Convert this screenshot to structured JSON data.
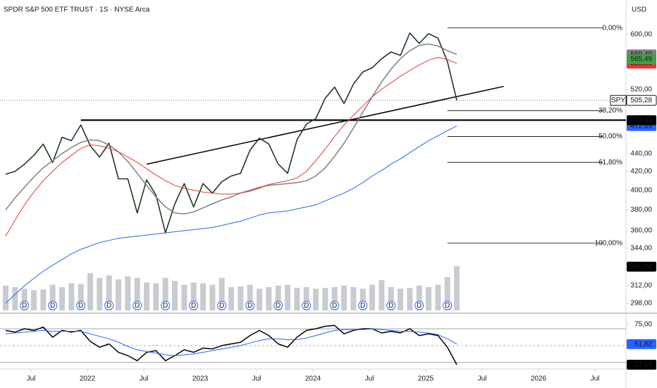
{
  "chart_data": [
    {
      "type": "line",
      "title": "SPDR S&P 500 ETF TRUST · 1S · NYSE Arca",
      "currency": "USD",
      "symbol": "SPY",
      "log_scale": true,
      "grid": false,
      "xlim": [
        "2021-04",
        "2026-10"
      ],
      "xticks": [
        {
          "value": "2021-07",
          "label": "Jul"
        },
        {
          "value": "2022-01",
          "label": "2022"
        },
        {
          "value": "2022-07",
          "label": "Jul"
        },
        {
          "value": "2023-01",
          "label": "2023"
        },
        {
          "value": "2023-07",
          "label": "Jul"
        },
        {
          "value": "2024-01",
          "label": "2024"
        },
        {
          "value": "2024-07",
          "label": "Jul"
        },
        {
          "value": "2025-01",
          "label": "2025"
        },
        {
          "value": "2025-07",
          "label": "Jul"
        },
        {
          "value": "2026-01",
          "label": "2026"
        },
        {
          "value": "2026-07",
          "label": "Jul"
        }
      ],
      "ylim": [
        291,
        656
      ],
      "yticks": [
        {
          "value": 600,
          "label": "600,00"
        },
        {
          "value": 520,
          "label": "520,00"
        },
        {
          "value": 440,
          "label": "440,00"
        },
        {
          "value": 420,
          "label": "420,00"
        },
        {
          "value": 400,
          "label": "400,00"
        },
        {
          "value": 380,
          "label": "380,00"
        },
        {
          "value": 360,
          "label": "360,00"
        },
        {
          "value": 344,
          "label": "344,00"
        },
        {
          "value": 312,
          "label": "312,00"
        },
        {
          "value": 298,
          "label": "298,00"
        }
      ],
      "x": [
        "2021-04",
        "2021-05",
        "2021-06",
        "2021-07",
        "2021-08",
        "2021-09",
        "2021-10",
        "2021-11",
        "2021-12",
        "2022-01",
        "2022-02",
        "2022-03",
        "2022-04",
        "2022-05",
        "2022-06",
        "2022-07",
        "2022-08",
        "2022-09",
        "2022-10",
        "2022-11",
        "2022-12",
        "2023-01",
        "2023-02",
        "2023-03",
        "2023-04",
        "2023-05",
        "2023-06",
        "2023-07",
        "2023-08",
        "2023-09",
        "2023-10",
        "2023-11",
        "2023-12",
        "2024-01",
        "2024-02",
        "2024-03",
        "2024-04",
        "2024-05",
        "2024-06",
        "2024-07",
        "2024-08",
        "2024-09",
        "2024-10",
        "2024-11",
        "2024-12",
        "2025-01",
        "2025-02",
        "2025-03",
        "2025-04"
      ],
      "series": [
        {
          "color": "#1e3a1e",
          "width": 1.6,
          "last_label": {
            "value": 505.28,
            "label": "505,28"
          },
          "values": [
            417,
            420,
            428,
            438,
            451,
            430,
            459,
            455,
            474,
            449,
            436,
            452,
            412,
            412,
            377,
            411,
            395,
            358,
            386,
            407,
            383,
            407,
            397,
            409,
            415,
            418,
            444,
            458,
            451,
            428,
            418,
            456,
            475,
            482,
            508,
            523,
            501,
            527,
            544,
            550,
            563,
            573,
            568,
            602,
            586,
            601,
            594,
            559,
            505.28
          ]
        },
        {
          "color": "#808080",
          "width": 1.5,
          "last_label": {
            "value": 569.4,
            "label": "569,40"
          },
          "values": [
            380,
            392,
            403,
            414,
            424,
            432,
            440,
            447,
            453,
            456,
            455,
            450,
            442,
            431,
            418,
            405,
            393,
            383,
            377,
            376,
            378,
            382,
            386,
            390,
            393,
            397,
            400,
            403,
            405,
            406,
            407,
            408,
            410,
            415,
            424,
            437,
            452,
            470,
            490,
            510,
            530,
            548,
            563,
            575,
            583,
            585,
            582,
            575,
            569.4
          ]
        },
        {
          "color": "#e53935",
          "width": 1,
          "last_label": {
            "value": 556.06,
            "label": "556,06"
          },
          "values": [
            355,
            370,
            385,
            398,
            410,
            420,
            430,
            438,
            446,
            450,
            449,
            446,
            442,
            436,
            430,
            423,
            416,
            410,
            405,
            402,
            400,
            398,
            397,
            396,
            396,
            397,
            399,
            402,
            406,
            408,
            410,
            413,
            420,
            432,
            445,
            460,
            474,
            486,
            498,
            510,
            520,
            529,
            538,
            546,
            554,
            561,
            565,
            562,
            556.06
          ]
        },
        {
          "color": "#2962ff",
          "width": 1,
          "last_label": {
            "value": 472.69,
            "label": "472,69"
          },
          "values": [
            298,
            305,
            312,
            318,
            324,
            329,
            334,
            339,
            343,
            346,
            349,
            351,
            353,
            354,
            355,
            356,
            357,
            358,
            359,
            360,
            361,
            362,
            363,
            365,
            367,
            369,
            372,
            375,
            377,
            378,
            379,
            381,
            383,
            385,
            389,
            393,
            397,
            402,
            408,
            415,
            421,
            428,
            434,
            441,
            448,
            455,
            461,
            467,
            472.69
          ]
        }
      ],
      "extra_labels": [
        {
          "value": 565.49,
          "label": "565,49",
          "color": "#43a047"
        }
      ],
      "volume": {
        "color": "#b2b5be",
        "last_label": {
          "value": 569.9,
          "label": "569,9M"
        },
        "values": [
          320,
          300,
          280,
          260,
          270,
          330,
          300,
          350,
          340,
          480,
          420,
          450,
          400,
          440,
          420,
          360,
          350,
          420,
          380,
          330,
          360,
          350,
          330,
          420,
          300,
          310,
          330,
          280,
          300,
          320,
          330,
          290,
          300,
          280,
          290,
          300,
          320,
          300,
          280,
          330,
          390,
          300,
          280,
          290,
          320,
          300,
          330,
          430,
          569.9
        ]
      },
      "dividends": {
        "label": "D",
        "color": "#2962ff",
        "x": [
          "2021-06",
          "2021-09",
          "2021-12",
          "2022-03",
          "2022-06",
          "2022-09",
          "2022-12",
          "2023-03",
          "2023-06",
          "2023-09",
          "2023-12",
          "2024-03",
          "2024-06",
          "2024-09",
          "2024-12",
          "2025-03"
        ]
      },
      "resistance": {
        "value": 479.93,
        "label": "479,93",
        "from": "2021-12"
      },
      "trendline": [
        {
          "x": "2022-07",
          "value": 428
        },
        {
          "x": "2025-09",
          "value": 524
        }
      ],
      "fib_levels": {
        "from": "2025-03",
        "levels": [
          {
            "value": 610,
            "label": "0,00%"
          },
          {
            "value": 492,
            "label": "38,20%"
          },
          {
            "value": 460,
            "label": "50,00%"
          },
          {
            "value": 430,
            "label": "61,80%"
          },
          {
            "value": 348.5,
            "label": "100,00%"
          }
        ]
      }
    },
    {
      "type": "line",
      "ylim": [
        23,
        86
      ],
      "yticks": [
        {
          "value": 75,
          "label": "75,00"
        }
      ],
      "levels": [
        70,
        50,
        30
      ],
      "x": [
        "2021-04",
        "2021-05",
        "2021-06",
        "2021-07",
        "2021-08",
        "2021-09",
        "2021-10",
        "2021-11",
        "2021-12",
        "2022-01",
        "2022-02",
        "2022-03",
        "2022-04",
        "2022-05",
        "2022-06",
        "2022-07",
        "2022-08",
        "2022-09",
        "2022-10",
        "2022-11",
        "2022-12",
        "2023-01",
        "2023-02",
        "2023-03",
        "2023-04",
        "2023-05",
        "2023-06",
        "2023-07",
        "2023-08",
        "2023-09",
        "2023-10",
        "2023-11",
        "2023-12",
        "2024-01",
        "2024-02",
        "2024-03",
        "2024-04",
        "2024-05",
        "2024-06",
        "2024-07",
        "2024-08",
        "2024-09",
        "2024-10",
        "2024-11",
        "2024-12",
        "2025-01",
        "2025-02",
        "2025-03",
        "2025-04"
      ],
      "series": [
        {
          "color": "#000000",
          "width": 1.5,
          "last_label": {
            "value": 27.17,
            "label": "27,17"
          },
          "values": [
            68,
            66,
            70,
            68,
            72,
            60,
            68,
            66,
            68,
            55,
            48,
            52,
            42,
            38,
            32,
            42,
            44,
            32,
            38,
            45,
            42,
            47,
            46,
            50,
            52,
            54,
            62,
            68,
            62,
            52,
            48,
            60,
            68,
            70,
            73,
            74,
            64,
            68,
            70,
            70,
            65,
            67,
            65,
            70,
            62,
            64,
            62,
            48,
            27.17
          ]
        },
        {
          "color": "#2962ff",
          "width": 1,
          "last_label": {
            "value": 51.82,
            "label": "51,82"
          },
          "values": [
            64,
            65,
            66,
            67,
            68,
            67,
            67,
            67,
            67,
            64,
            61,
            58,
            54,
            49,
            45,
            43,
            41,
            39,
            38,
            39,
            40,
            42,
            44,
            46,
            48,
            50,
            53,
            56,
            58,
            58,
            57,
            57,
            59,
            62,
            65,
            68,
            69,
            69,
            69,
            70,
            69,
            68,
            67,
            67,
            66,
            65,
            63,
            58,
            51.82
          ]
        }
      ]
    }
  ]
}
